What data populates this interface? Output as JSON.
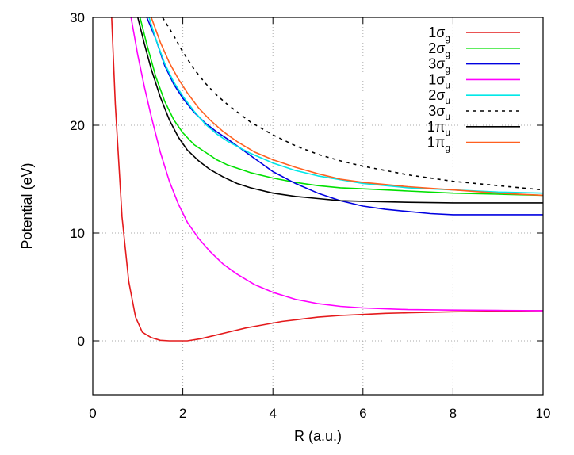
{
  "chart_data": {
    "type": "line",
    "title": "",
    "xlabel": "R (a.u.)",
    "ylabel": "Potential (eV)",
    "xlim": [
      0,
      10
    ],
    "ylim": [
      -5,
      30
    ],
    "xticks": [
      "0",
      "2",
      "4",
      "6",
      "8",
      "10"
    ],
    "yticks": [
      "0",
      "10",
      "20",
      "30"
    ],
    "grid": true,
    "legend_position": "top-right",
    "series": [
      {
        "name": "1σg",
        "label_main": "1σ",
        "label_sub": "g",
        "color": "#e41a1c",
        "dash": "",
        "x": [
          0.4,
          0.5,
          0.65,
          0.8,
          0.95,
          1.1,
          1.3,
          1.5,
          1.7,
          1.9,
          2.1,
          2.4,
          2.7,
          3.0,
          3.4,
          3.8,
          4.2,
          4.6,
          5.0,
          5.5,
          6.0,
          6.5,
          7.0,
          7.5,
          8.0,
          8.5,
          9.0,
          9.5,
          10.0
        ],
        "y": [
          32,
          22,
          11.5,
          5.5,
          2.2,
          0.8,
          0.3,
          0.05,
          0.0,
          0.0,
          0.0,
          0.2,
          0.5,
          0.8,
          1.2,
          1.5,
          1.8,
          2.0,
          2.2,
          2.35,
          2.45,
          2.55,
          2.6,
          2.65,
          2.7,
          2.72,
          2.75,
          2.78,
          2.8
        ]
      },
      {
        "name": "2σg",
        "label_main": "2σ",
        "label_sub": "g",
        "color": "#00e000",
        "dash": "",
        "x": [
          1.05,
          1.2,
          1.4,
          1.6,
          1.8,
          2.0,
          2.25,
          2.5,
          2.75,
          3.0,
          3.5,
          4.0,
          4.5,
          5.0,
          5.5,
          6.0,
          7.0,
          8.0,
          9.0,
          10.0
        ],
        "y": [
          30,
          27.5,
          24.5,
          22.2,
          20.5,
          19.3,
          18.2,
          17.5,
          16.8,
          16.3,
          15.6,
          15.1,
          14.7,
          14.4,
          14.2,
          14.1,
          13.9,
          13.7,
          13.6,
          13.5
        ]
      },
      {
        "name": "3σg",
        "label_main": "3σ",
        "label_sub": "g",
        "color": "#0000e0",
        "dash": "",
        "x": [
          1.2,
          1.4,
          1.6,
          1.8,
          2.0,
          2.25,
          2.5,
          2.75,
          3.0,
          3.5,
          4.0,
          4.5,
          5.0,
          5.5,
          6.0,
          6.5,
          7.0,
          7.5,
          8.0,
          9.0,
          10.0
        ],
        "y": [
          30,
          28,
          25.5,
          23.8,
          22.5,
          21.2,
          20.2,
          19.4,
          18.7,
          17.2,
          15.7,
          14.6,
          13.7,
          13.0,
          12.5,
          12.2,
          12.0,
          11.8,
          11.7,
          11.7,
          11.7
        ]
      },
      {
        "name": "1σu",
        "label_main": "1σ",
        "label_sub": "u",
        "color": "#ff00ff",
        "dash": "",
        "x": [
          0.85,
          1.0,
          1.15,
          1.3,
          1.5,
          1.7,
          1.9,
          2.1,
          2.35,
          2.6,
          2.9,
          3.2,
          3.6,
          4.0,
          4.5,
          5.0,
          5.5,
          6.0,
          7.0,
          8.0,
          9.0,
          10.0
        ],
        "y": [
          30,
          26.5,
          23.5,
          20.8,
          17.5,
          14.8,
          12.7,
          11.0,
          9.5,
          8.3,
          7.1,
          6.2,
          5.2,
          4.5,
          3.85,
          3.45,
          3.2,
          3.05,
          2.9,
          2.85,
          2.82,
          2.8
        ]
      },
      {
        "name": "2σu",
        "label_main": "2σ",
        "label_sub": "u",
        "color": "#00e8e8",
        "dash": "",
        "x": [
          1.25,
          1.4,
          1.6,
          1.8,
          2.0,
          2.25,
          2.5,
          2.75,
          3.0,
          3.5,
          4.0,
          4.5,
          5.0,
          6.0,
          7.0,
          8.0,
          9.0,
          10.0
        ],
        "y": [
          30,
          28,
          25.7,
          24.0,
          22.7,
          21.3,
          20.1,
          19.2,
          18.5,
          17.4,
          16.5,
          15.8,
          15.3,
          14.6,
          14.2,
          14.0,
          13.8,
          13.7
        ]
      },
      {
        "name": "3σu",
        "label_main": "3σ",
        "label_sub": "u",
        "color": "#000000",
        "dash": "4,5",
        "x": [
          1.55,
          1.8,
          2.0,
          2.25,
          2.5,
          2.75,
          3.0,
          3.5,
          4.0,
          4.5,
          5.0,
          5.5,
          6.0,
          6.5,
          7.0,
          7.5,
          8.0,
          8.5,
          9.0,
          9.5,
          10.0
        ],
        "y": [
          30,
          28.3,
          26.8,
          25.2,
          23.9,
          22.8,
          21.9,
          20.3,
          19.1,
          18.1,
          17.3,
          16.7,
          16.2,
          15.8,
          15.4,
          15.1,
          14.8,
          14.6,
          14.4,
          14.2,
          14.0
        ]
      },
      {
        "name": "1πu",
        "label_main": "1π",
        "label_sub": "u",
        "color": "#000000",
        "dash": "",
        "x": [
          1.0,
          1.15,
          1.3,
          1.5,
          1.7,
          1.9,
          2.1,
          2.35,
          2.6,
          2.9,
          3.2,
          3.5,
          4.0,
          4.5,
          5.0,
          5.5,
          6.0,
          7.0,
          8.0,
          9.0,
          10.0
        ],
        "y": [
          30,
          27.5,
          25.2,
          22.6,
          20.5,
          18.9,
          17.7,
          16.7,
          15.9,
          15.2,
          14.6,
          14.2,
          13.7,
          13.4,
          13.2,
          13.0,
          12.95,
          12.85,
          12.8,
          12.8,
          12.8
        ]
      },
      {
        "name": "1πg",
        "label_main": "1π",
        "label_sub": "g",
        "color": "#ff6020",
        "dash": "",
        "x": [
          1.3,
          1.5,
          1.7,
          1.9,
          2.1,
          2.35,
          2.6,
          2.9,
          3.2,
          3.6,
          4.0,
          4.5,
          5.0,
          5.5,
          6.0,
          7.0,
          8.0,
          9.0,
          10.0
        ],
        "y": [
          30,
          27.7,
          25.8,
          24.3,
          23.0,
          21.6,
          20.5,
          19.4,
          18.5,
          17.5,
          16.8,
          16.1,
          15.5,
          15.0,
          14.7,
          14.3,
          14.0,
          13.7,
          13.5
        ]
      }
    ]
  }
}
